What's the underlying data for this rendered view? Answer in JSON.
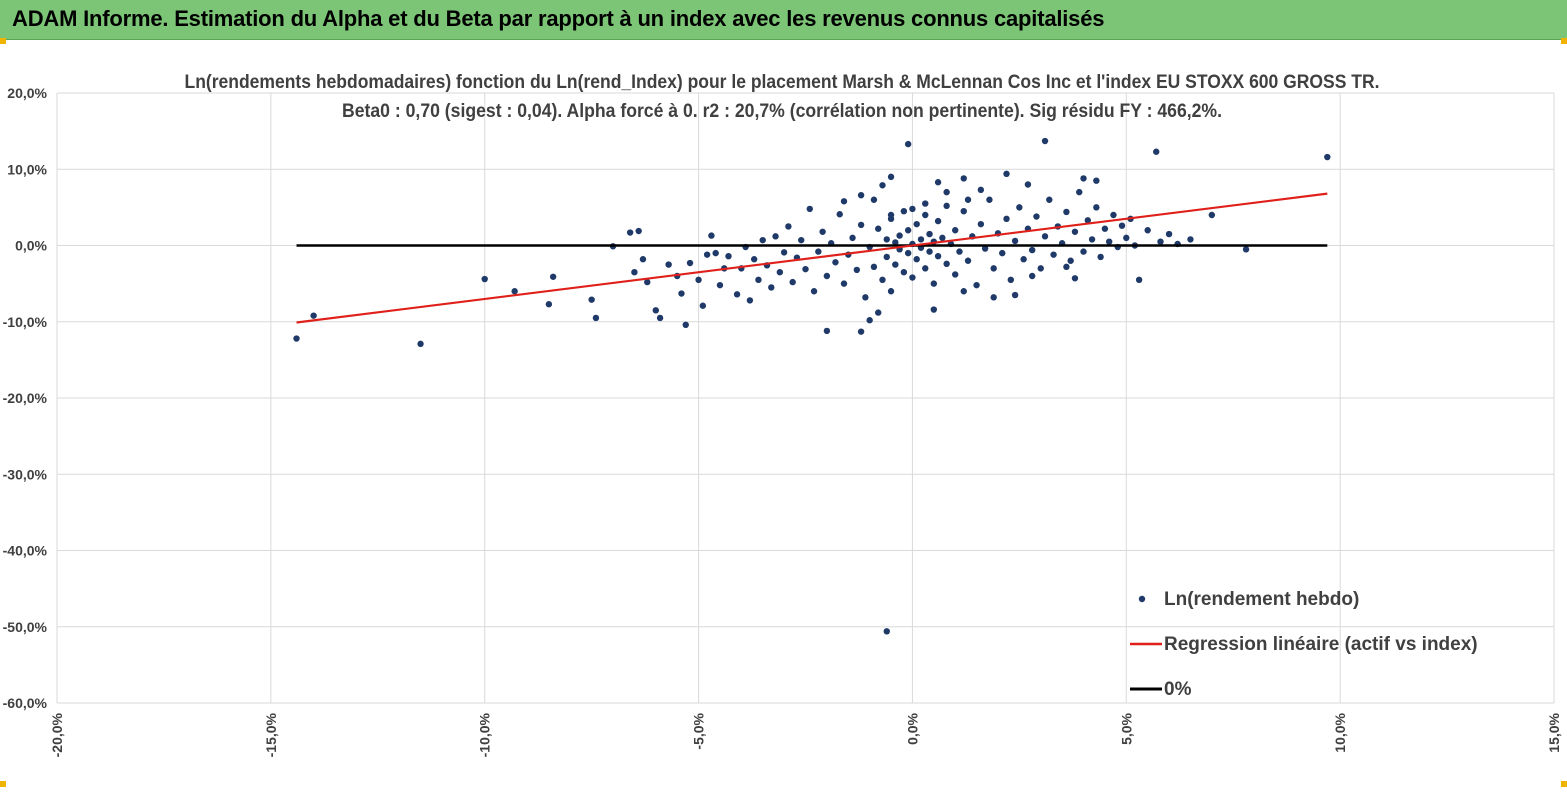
{
  "header": {
    "title": "ADAM Informe. Estimation du Alpha et du Beta par rapport à un index avec les revenus connus capitalisés"
  },
  "colors": {
    "header_bg": "#7cc576",
    "points": "#1f3a68",
    "regression": "#e0201b",
    "zero_line": "#000000",
    "grid": "#d9d9d9",
    "corner_marker": "#f0b400"
  },
  "chart_data": {
    "type": "scatter",
    "title": "Ln(rendements hebdomadaires) fonction du Ln(rend_Index) pour le placement Marsh & McLennan Cos Inc et l'index EU STOXX 600 GROSS TR.",
    "subtitle": "Beta0 : 0,70 (sigest : 0,04). Alpha forcé à 0. r2 : 20,7% (corrélation non pertinente). Sig résidu FY : 466,2%.",
    "xlabel": "",
    "ylabel": "",
    "xlim": [
      -0.2,
      0.15
    ],
    "ylim": [
      -0.6,
      0.2
    ],
    "x_ticks": [
      -0.2,
      -0.15,
      -0.1,
      -0.05,
      0.0,
      0.05,
      0.1,
      0.15
    ],
    "x_tick_labels": [
      "-20,0%",
      "-15,0%",
      "-10,0%",
      "-5,0%",
      "0,0%",
      "5,0%",
      "10,0%",
      "15,0%"
    ],
    "y_ticks": [
      0.2,
      0.1,
      0.0,
      -0.1,
      -0.2,
      -0.3,
      -0.4,
      -0.5,
      -0.6
    ],
    "y_tick_labels": [
      "20,0%",
      "10,0%",
      "0,0%",
      "-10,0%",
      "-20,0%",
      "-30,0%",
      "-40,0%",
      "-50,0%",
      "-60,0%"
    ],
    "grid": true,
    "legend_position": "bottom-right",
    "series": [
      {
        "name": "Ln(rendement hebdo)",
        "type": "scatter",
        "points": [
          [
            -0.144,
            -0.122
          ],
          [
            -0.14,
            -0.092
          ],
          [
            -0.115,
            -0.129
          ],
          [
            -0.1,
            -0.044
          ],
          [
            -0.093,
            -0.06
          ],
          [
            -0.085,
            -0.077
          ],
          [
            -0.084,
            -0.041
          ],
          [
            -0.075,
            -0.071
          ],
          [
            -0.074,
            -0.095
          ],
          [
            -0.07,
            -0.001
          ],
          [
            -0.066,
            0.017
          ],
          [
            -0.065,
            -0.035
          ],
          [
            -0.064,
            0.019
          ],
          [
            -0.063,
            -0.018
          ],
          [
            -0.062,
            -0.048
          ],
          [
            -0.06,
            -0.085
          ],
          [
            -0.059,
            -0.095
          ],
          [
            -0.057,
            -0.025
          ],
          [
            -0.055,
            -0.04
          ],
          [
            -0.054,
            -0.063
          ],
          [
            -0.053,
            -0.104
          ],
          [
            -0.052,
            -0.023
          ],
          [
            -0.05,
            -0.045
          ],
          [
            -0.049,
            -0.079
          ],
          [
            -0.048,
            -0.012
          ],
          [
            -0.047,
            0.013
          ],
          [
            -0.046,
            -0.01
          ],
          [
            -0.045,
            -0.052
          ],
          [
            -0.044,
            -0.03
          ],
          [
            -0.043,
            -0.014
          ],
          [
            -0.041,
            -0.064
          ],
          [
            -0.04,
            -0.03
          ],
          [
            -0.039,
            -0.002
          ],
          [
            -0.038,
            -0.072
          ],
          [
            -0.037,
            -0.018
          ],
          [
            -0.036,
            -0.045
          ],
          [
            -0.035,
            0.007
          ],
          [
            -0.034,
            -0.026
          ],
          [
            -0.033,
            -0.055
          ],
          [
            -0.032,
            0.012
          ],
          [
            -0.031,
            -0.035
          ],
          [
            -0.03,
            -0.009
          ],
          [
            -0.029,
            0.025
          ],
          [
            -0.028,
            -0.048
          ],
          [
            -0.027,
            -0.016
          ],
          [
            -0.026,
            0.007
          ],
          [
            -0.025,
            -0.031
          ],
          [
            -0.024,
            0.048
          ],
          [
            -0.023,
            -0.06
          ],
          [
            -0.022,
            -0.008
          ],
          [
            -0.021,
            0.018
          ],
          [
            -0.02,
            -0.04
          ],
          [
            -0.019,
            0.003
          ],
          [
            -0.018,
            -0.022
          ],
          [
            -0.017,
            0.041
          ],
          [
            -0.016,
            -0.05
          ],
          [
            -0.015,
            -0.012
          ],
          [
            -0.014,
            0.01
          ],
          [
            -0.013,
            -0.032
          ],
          [
            -0.012,
            0.027
          ],
          [
            -0.011,
            -0.068
          ],
          [
            -0.01,
            -0.002
          ],
          [
            -0.009,
            0.06
          ],
          [
            -0.009,
            -0.028
          ],
          [
            -0.008,
            0.022
          ],
          [
            -0.007,
            -0.045
          ],
          [
            -0.006,
            0.008
          ],
          [
            -0.006,
            -0.015
          ],
          [
            -0.005,
            0.035
          ],
          [
            -0.005,
            -0.06
          ],
          [
            -0.004,
            0.004
          ],
          [
            -0.004,
            -0.025
          ],
          [
            -0.003,
            0.013
          ],
          [
            -0.003,
            -0.005
          ],
          [
            -0.002,
            0.045
          ],
          [
            -0.002,
            -0.035
          ],
          [
            -0.001,
            0.02
          ],
          [
            -0.001,
            -0.01
          ],
          [
            0.0,
            0.002
          ],
          [
            0.0,
            -0.042
          ],
          [
            0.001,
            0.028
          ],
          [
            0.001,
            -0.018
          ],
          [
            0.002,
            0.008
          ],
          [
            0.002,
            -0.003
          ],
          [
            0.003,
            0.055
          ],
          [
            0.003,
            -0.03
          ],
          [
            0.004,
            0.015
          ],
          [
            0.004,
            -0.008
          ],
          [
            0.005,
            0.005
          ],
          [
            0.005,
            -0.05
          ],
          [
            0.006,
            0.032
          ],
          [
            0.006,
            -0.014
          ],
          [
            0.007,
            0.01
          ],
          [
            0.008,
            -0.024
          ],
          [
            0.008,
            0.07
          ],
          [
            0.009,
            0.002
          ],
          [
            0.01,
            -0.038
          ],
          [
            0.01,
            0.02
          ],
          [
            0.011,
            -0.008
          ],
          [
            0.012,
            0.045
          ],
          [
            0.013,
            -0.02
          ],
          [
            0.014,
            0.012
          ],
          [
            0.015,
            -0.052
          ],
          [
            0.016,
            0.028
          ],
          [
            0.017,
            -0.004
          ],
          [
            0.018,
            0.06
          ],
          [
            0.019,
            -0.03
          ],
          [
            0.02,
            0.016
          ],
          [
            0.021,
            -0.01
          ],
          [
            0.022,
            0.035
          ],
          [
            0.023,
            -0.045
          ],
          [
            0.024,
            0.006
          ],
          [
            0.025,
            0.05
          ],
          [
            0.026,
            -0.018
          ],
          [
            0.027,
            0.022
          ],
          [
            0.028,
            -0.006
          ],
          [
            0.029,
            0.038
          ],
          [
            0.03,
            -0.03
          ],
          [
            0.031,
            0.012
          ],
          [
            0.032,
            0.06
          ],
          [
            0.033,
            -0.012
          ],
          [
            0.034,
            0.025
          ],
          [
            0.035,
            0.003
          ],
          [
            0.036,
            0.044
          ],
          [
            0.037,
            -0.02
          ],
          [
            0.038,
            0.018
          ],
          [
            0.039,
            0.07
          ],
          [
            0.04,
            -0.008
          ],
          [
            0.041,
            0.033
          ],
          [
            0.042,
            0.008
          ],
          [
            0.043,
            0.05
          ],
          [
            0.044,
            -0.015
          ],
          [
            0.045,
            0.022
          ],
          [
            0.046,
            0.005
          ],
          [
            0.047,
            0.04
          ],
          [
            0.048,
            -0.002
          ],
          [
            0.049,
            0.026
          ],
          [
            0.05,
            0.01
          ],
          [
            0.051,
            0.035
          ],
          [
            0.052,
            0.0
          ],
          [
            0.055,
            0.02
          ],
          [
            0.058,
            0.005
          ],
          [
            0.06,
            0.015
          ],
          [
            0.062,
            0.002
          ],
          [
            0.065,
            0.008
          ],
          [
            -0.001,
            0.133
          ],
          [
            0.031,
            0.137
          ],
          [
            0.057,
            0.123
          ],
          [
            0.097,
            0.116
          ],
          [
            0.022,
            0.094
          ],
          [
            0.04,
            0.088
          ],
          [
            0.043,
            0.085
          ],
          [
            0.027,
            0.08
          ],
          [
            0.012,
            0.088
          ],
          [
            -0.005,
            0.09
          ],
          [
            0.07,
            0.04
          ],
          [
            0.078,
            -0.005
          ],
          [
            0.053,
            -0.045
          ],
          [
            0.038,
            -0.043
          ],
          [
            0.036,
            -0.028
          ],
          [
            -0.006,
            -0.506
          ],
          [
            -0.012,
            -0.113
          ],
          [
            -0.02,
            -0.112
          ],
          [
            -0.01,
            -0.098
          ],
          [
            -0.008,
            -0.088
          ],
          [
            0.005,
            -0.084
          ],
          [
            0.012,
            -0.06
          ],
          [
            0.019,
            -0.068
          ],
          [
            0.024,
            -0.065
          ],
          [
            0.028,
            -0.04
          ],
          [
            0.016,
            0.073
          ],
          [
            0.006,
            0.083
          ],
          [
            -0.007,
            0.079
          ],
          [
            -0.012,
            0.066
          ],
          [
            -0.016,
            0.058
          ],
          [
            0.013,
            0.06
          ],
          [
            0.008,
            0.052
          ],
          [
            0.0,
            0.048
          ],
          [
            -0.005,
            0.04
          ],
          [
            0.003,
            0.04
          ]
        ]
      },
      {
        "name": "Regression linéaire (actif vs index)",
        "type": "line",
        "points": [
          [
            -0.144,
            -0.101
          ],
          [
            0.097,
            0.068
          ]
        ]
      },
      {
        "name": "0%",
        "type": "line",
        "points": [
          [
            -0.144,
            0.0
          ],
          [
            0.097,
            0.0
          ]
        ]
      }
    ]
  }
}
